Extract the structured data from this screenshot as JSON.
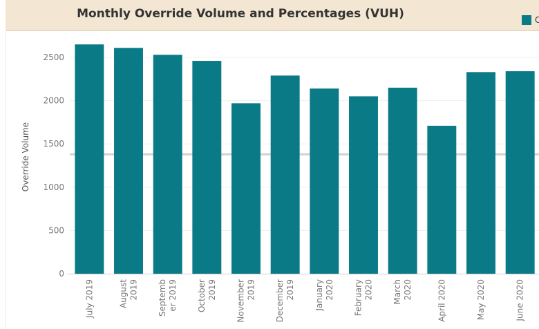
{
  "chart_data": {
    "type": "bar",
    "title": "Monthly Override Volume and Percentages (VUH)",
    "xlabel": "",
    "ylabel": "Override Volume",
    "ylim": [
      0,
      2700
    ],
    "yticks": [
      0,
      500,
      1000,
      1500,
      2000,
      2500
    ],
    "grid": true,
    "legend_position": "top-right",
    "reference_line": 1380,
    "categories": [
      [
        "July 2019"
      ],
      [
        "August",
        "2019"
      ],
      [
        "Septemb",
        "er 2019"
      ],
      [
        "October",
        "2019"
      ],
      [
        "November",
        "2019"
      ],
      [
        "December",
        "2019"
      ],
      [
        "January",
        "2020"
      ],
      [
        "February",
        "2020"
      ],
      [
        "March",
        "2020"
      ],
      [
        "April 2020"
      ],
      [
        "May 2020"
      ],
      [
        "June 2020"
      ]
    ],
    "series": [
      {
        "name": "C",
        "color": "#0a7a87",
        "values": [
          2650,
          2610,
          2530,
          2460,
          1970,
          2290,
          2140,
          2050,
          2150,
          1710,
          2330,
          2340
        ]
      }
    ]
  }
}
